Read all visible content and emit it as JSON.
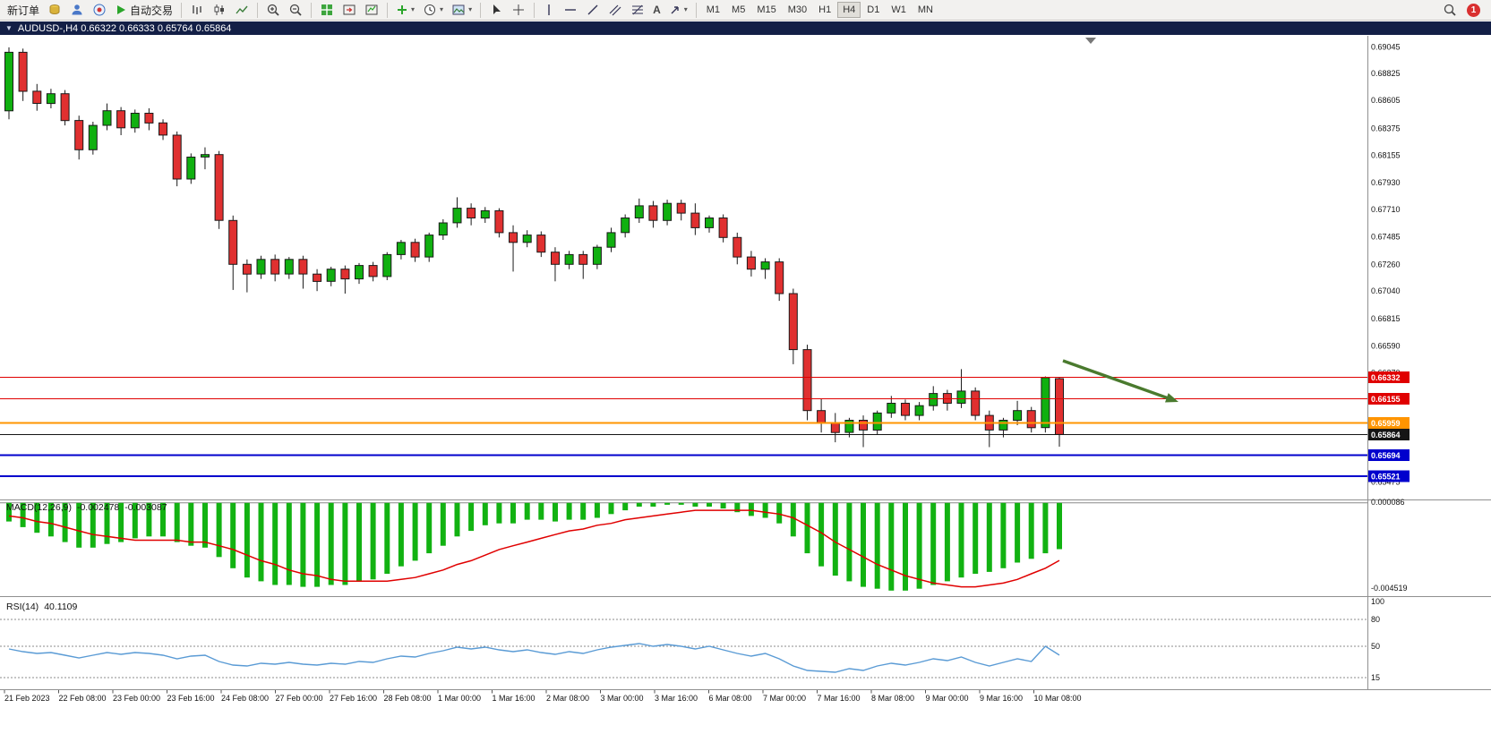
{
  "toolbar": {
    "new_order_label": "新订单",
    "auto_trade_label": "自动交易",
    "timeframes": [
      "M1",
      "M5",
      "M15",
      "M30",
      "H1",
      "H4",
      "D1",
      "W1",
      "MN"
    ],
    "active_timeframe": "H4",
    "notification_count": "1",
    "icons": [
      "coins-icon",
      "profile-icon",
      "community-icon",
      "autotrade-icon",
      "bars-chart-icon",
      "candlestick-chart-icon",
      "line-chart-icon",
      "zoom-in-icon",
      "zoom-out-icon",
      "tile-windows-icon",
      "chart-shift-icon",
      "auto-scroll-icon",
      "indicators-icon",
      "periods-icon",
      "templates-icon",
      "cursor-icon",
      "crosshair-icon",
      "vertical-line-icon",
      "horizontal-line-icon",
      "trendline-icon",
      "channel-icon",
      "fibonacci-icon",
      "text-icon",
      "arrows-icon",
      "search-icon"
    ]
  },
  "chart_header": {
    "title": "AUDUSD-,H4  0.66322 0.66333 0.65764 0.65864",
    "symbol": "AUDUSD-",
    "timeframe": "H4",
    "open": "0.66322",
    "high": "0.66333",
    "low": "0.65764",
    "close": "0.65864"
  },
  "chart_data": [
    {
      "panel": "main",
      "type": "candlestick",
      "symbol": "AUDUSD-",
      "timeframe": "H4",
      "y_range": [
        0.65345,
        0.69135
      ],
      "up_color": "#10b010",
      "down_color": "#e03030",
      "price_axis_ticks": [
        "0.69045",
        "0.68825",
        "0.68605",
        "0.68375",
        "0.68155",
        "0.67930",
        "0.67710",
        "0.67485",
        "0.67260",
        "0.67040",
        "0.66815",
        "0.66590",
        "0.66370",
        "0.66145",
        "0.65920",
        "0.65695",
        "0.65475"
      ],
      "x_labels": [
        "21 Feb 2023",
        "22 Feb 08:00",
        "23 Feb 00:00",
        "23 Feb 16:00",
        "24 Feb 08:00",
        "27 Feb 00:00",
        "27 Feb 16:00",
        "28 Feb 08:00",
        "1 Mar 00:00",
        "1 Mar 16:00",
        "2 Mar 08:00",
        "3 Mar 00:00",
        "3 Mar 16:00",
        "6 Mar 08:00",
        "7 Mar 00:00",
        "7 Mar 16:00",
        "8 Mar 08:00",
        "9 Mar 00:00",
        "9 Mar 16:00",
        "10 Mar 08:00"
      ],
      "candles_ohlc": [
        [
          0.6852,
          0.6904,
          0.6845,
          0.69
        ],
        [
          0.69,
          0.6903,
          0.686,
          0.6868
        ],
        [
          0.6868,
          0.6874,
          0.6852,
          0.6858
        ],
        [
          0.6858,
          0.687,
          0.6854,
          0.6866
        ],
        [
          0.6866,
          0.6869,
          0.684,
          0.6844
        ],
        [
          0.6844,
          0.6848,
          0.6812,
          0.682
        ],
        [
          0.682,
          0.6843,
          0.6816,
          0.684
        ],
        [
          0.684,
          0.6858,
          0.6836,
          0.6852
        ],
        [
          0.6852,
          0.6855,
          0.6832,
          0.6838
        ],
        [
          0.6838,
          0.6853,
          0.6834,
          0.685
        ],
        [
          0.685,
          0.6854,
          0.6836,
          0.6842
        ],
        [
          0.6842,
          0.6845,
          0.6828,
          0.6832
        ],
        [
          0.6832,
          0.6835,
          0.679,
          0.6796
        ],
        [
          0.6796,
          0.6817,
          0.6792,
          0.6814
        ],
        [
          0.6814,
          0.6822,
          0.6804,
          0.6816
        ],
        [
          0.6816,
          0.6819,
          0.6755,
          0.6762
        ],
        [
          0.6762,
          0.6766,
          0.6705,
          0.6726
        ],
        [
          0.6726,
          0.673,
          0.6703,
          0.6718
        ],
        [
          0.6718,
          0.6733,
          0.6714,
          0.673
        ],
        [
          0.673,
          0.6734,
          0.6712,
          0.6718
        ],
        [
          0.6718,
          0.6732,
          0.6714,
          0.673
        ],
        [
          0.673,
          0.6733,
          0.6706,
          0.6718
        ],
        [
          0.6718,
          0.6722,
          0.6704,
          0.6712
        ],
        [
          0.6712,
          0.6724,
          0.6708,
          0.6722
        ],
        [
          0.6722,
          0.6725,
          0.6702,
          0.6714
        ],
        [
          0.6714,
          0.6727,
          0.671,
          0.6725
        ],
        [
          0.6725,
          0.6728,
          0.6712,
          0.6716
        ],
        [
          0.6716,
          0.6736,
          0.6713,
          0.6734
        ],
        [
          0.6734,
          0.6746,
          0.673,
          0.6744
        ],
        [
          0.6744,
          0.6747,
          0.6728,
          0.6732
        ],
        [
          0.6732,
          0.6752,
          0.6728,
          0.675
        ],
        [
          0.675,
          0.6763,
          0.6746,
          0.676
        ],
        [
          0.676,
          0.6781,
          0.6756,
          0.6772
        ],
        [
          0.6772,
          0.6776,
          0.6758,
          0.6764
        ],
        [
          0.6764,
          0.6773,
          0.676,
          0.677
        ],
        [
          0.677,
          0.6772,
          0.6748,
          0.6752
        ],
        [
          0.6752,
          0.6758,
          0.672,
          0.6744
        ],
        [
          0.6744,
          0.6754,
          0.674,
          0.675
        ],
        [
          0.675,
          0.6753,
          0.6732,
          0.6736
        ],
        [
          0.6736,
          0.674,
          0.6712,
          0.6726
        ],
        [
          0.6726,
          0.6737,
          0.6722,
          0.6734
        ],
        [
          0.6734,
          0.6737,
          0.6714,
          0.6726
        ],
        [
          0.6726,
          0.6742,
          0.6722,
          0.674
        ],
        [
          0.674,
          0.6756,
          0.6736,
          0.6752
        ],
        [
          0.6752,
          0.6767,
          0.6748,
          0.6764
        ],
        [
          0.6764,
          0.678,
          0.676,
          0.6774
        ],
        [
          0.6774,
          0.6778,
          0.6756,
          0.6762
        ],
        [
          0.6762,
          0.6779,
          0.6758,
          0.6776
        ],
        [
          0.6776,
          0.6779,
          0.6762,
          0.6768
        ],
        [
          0.6768,
          0.6776,
          0.675,
          0.6756
        ],
        [
          0.6756,
          0.6766,
          0.6752,
          0.6764
        ],
        [
          0.6764,
          0.6767,
          0.6744,
          0.6748
        ],
        [
          0.6748,
          0.6752,
          0.6726,
          0.6732
        ],
        [
          0.6732,
          0.6737,
          0.6716,
          0.6722
        ],
        [
          0.6722,
          0.6731,
          0.6714,
          0.6728
        ],
        [
          0.6728,
          0.6731,
          0.6696,
          0.6702
        ],
        [
          0.6702,
          0.6706,
          0.6644,
          0.6656
        ],
        [
          0.6656,
          0.666,
          0.6598,
          0.6606
        ],
        [
          0.6606,
          0.6616,
          0.6588,
          0.6596
        ],
        [
          0.6596,
          0.6604,
          0.658,
          0.6588
        ],
        [
          0.6588,
          0.66,
          0.6584,
          0.6598
        ],
        [
          0.6598,
          0.6602,
          0.6576,
          0.659
        ],
        [
          0.659,
          0.6606,
          0.6586,
          0.6604
        ],
        [
          0.6604,
          0.6618,
          0.66,
          0.6612
        ],
        [
          0.6612,
          0.6615,
          0.6598,
          0.6602
        ],
        [
          0.6602,
          0.6613,
          0.6598,
          0.661
        ],
        [
          0.661,
          0.6626,
          0.6606,
          0.662
        ],
        [
          0.662,
          0.6623,
          0.6606,
          0.6612
        ],
        [
          0.6612,
          0.664,
          0.6608,
          0.6622
        ],
        [
          0.6622,
          0.6625,
          0.6598,
          0.6602
        ],
        [
          0.6602,
          0.6606,
          0.6576,
          0.659
        ],
        [
          0.659,
          0.66,
          0.6584,
          0.6598
        ],
        [
          0.6598,
          0.6614,
          0.6594,
          0.6606
        ],
        [
          0.6606,
          0.6609,
          0.6588,
          0.6592
        ],
        [
          0.6592,
          0.6634,
          0.6588,
          0.6633
        ],
        [
          0.66322,
          0.66333,
          0.65764,
          0.65864
        ]
      ],
      "hlines": [
        {
          "price": 0.66332,
          "label": "0.66332",
          "color": "#e00000",
          "width": 1
        },
        {
          "price": 0.66155,
          "label": "0.66155",
          "color": "#e00000",
          "width": 1
        },
        {
          "price": 0.65959,
          "label": "0.65959",
          "color": "#ff9400",
          "width": 2
        },
        {
          "price": 0.65864,
          "label": "0.65864",
          "color": "#151515",
          "width": 1,
          "role": "current-price"
        },
        {
          "price": 0.65694,
          "label": "0.65694",
          "color": "#0000cd",
          "width": 2
        },
        {
          "price": 0.65521,
          "label": "0.65521",
          "color": "#0000cd",
          "width": 2
        }
      ],
      "annotation_arrow": {
        "from": [
          1187,
          403
        ],
        "to": [
          1316,
          449
        ],
        "color": "#4a7a2e"
      }
    },
    {
      "panel": "macd",
      "type": "bar+line",
      "label": "MACD(12,26,9)",
      "value_main": "-0.002478",
      "value_signal": "-0.003087",
      "axis_max_label": "0.000086",
      "axis_min_label": "-0.004519",
      "y_range": [
        -0.004519,
        8.6e-05
      ],
      "hist_color": "#12b212",
      "signal_color": "#e00000",
      "histogram": [
        -0.001,
        -0.0013,
        -0.0016,
        -0.0018,
        -0.0021,
        -0.0024,
        -0.0024,
        -0.0022,
        -0.0021,
        -0.0019,
        -0.0018,
        -0.0018,
        -0.0021,
        -0.0023,
        -0.0024,
        -0.0029,
        -0.0035,
        -0.004,
        -0.0042,
        -0.0044,
        -0.0044,
        -0.0045,
        -0.0045,
        -0.0044,
        -0.0044,
        -0.0042,
        -0.0041,
        -0.0038,
        -0.0034,
        -0.0031,
        -0.0027,
        -0.0023,
        -0.0018,
        -0.0015,
        -0.0012,
        -0.0011,
        -0.0011,
        -0.0009,
        -0.0009,
        -0.001,
        -0.0009,
        -0.0009,
        -0.0008,
        -0.0006,
        -0.0004,
        -0.0002,
        -0.0002,
        -0.0001,
        -0.0001,
        -0.0002,
        -0.0002,
        -0.0003,
        -0.0005,
        -0.0007,
        -0.0008,
        -0.0011,
        -0.0018,
        -0.0027,
        -0.0034,
        -0.0039,
        -0.0042,
        -0.0045,
        -0.0046,
        -0.0047,
        -0.0047,
        -0.0046,
        -0.0044,
        -0.0042,
        -0.004,
        -0.0038,
        -0.0037,
        -0.0035,
        -0.0032,
        -0.003,
        -0.0027,
        -0.002478
      ],
      "signal": [
        -0.0007,
        -0.0008,
        -0.001,
        -0.0011,
        -0.0013,
        -0.0015,
        -0.0017,
        -0.0018,
        -0.0019,
        -0.002,
        -0.002,
        -0.002,
        -0.002,
        -0.0021,
        -0.0021,
        -0.0023,
        -0.0025,
        -0.0028,
        -0.0031,
        -0.0033,
        -0.0036,
        -0.0038,
        -0.0039,
        -0.0041,
        -0.0042,
        -0.0042,
        -0.0042,
        -0.0042,
        -0.0041,
        -0.004,
        -0.0038,
        -0.0036,
        -0.0033,
        -0.0031,
        -0.0028,
        -0.0025,
        -0.0023,
        -0.0021,
        -0.0019,
        -0.0017,
        -0.0015,
        -0.0014,
        -0.0012,
        -0.0011,
        -0.0009,
        -0.0008,
        -0.0007,
        -0.0006,
        -0.0005,
        -0.0004,
        -0.0004,
        -0.0004,
        -0.0004,
        -0.0004,
        -0.0005,
        -0.0006,
        -0.0008,
        -0.0012,
        -0.0016,
        -0.0021,
        -0.0025,
        -0.0029,
        -0.0033,
        -0.0036,
        -0.0039,
        -0.0041,
        -0.0043,
        -0.0044,
        -0.0045,
        -0.0045,
        -0.0044,
        -0.0043,
        -0.0041,
        -0.0038,
        -0.0035,
        -0.003087
      ]
    },
    {
      "panel": "rsi",
      "type": "line",
      "label": "RSI(14)",
      "value": "40.1109",
      "line_color": "#5a9bd5",
      "levels": [
        80,
        50,
        15
      ],
      "axis_labels": [
        "100",
        "80",
        "50",
        "15"
      ],
      "series": [
        47,
        44,
        42,
        43,
        40,
        37,
        40,
        43,
        41,
        43,
        42,
        40,
        36,
        39,
        40,
        33,
        29,
        28,
        31,
        30,
        32,
        30,
        29,
        31,
        30,
        33,
        32,
        36,
        39,
        38,
        42,
        45,
        49,
        47,
        49,
        46,
        44,
        46,
        43,
        41,
        44,
        42,
        46,
        49,
        51,
        53,
        50,
        52,
        50,
        47,
        50,
        46,
        42,
        39,
        42,
        36,
        28,
        23,
        22,
        21,
        25,
        23,
        28,
        31,
        29,
        32,
        36,
        34,
        38,
        32,
        28,
        32,
        36,
        33,
        50,
        40.11
      ]
    }
  ]
}
